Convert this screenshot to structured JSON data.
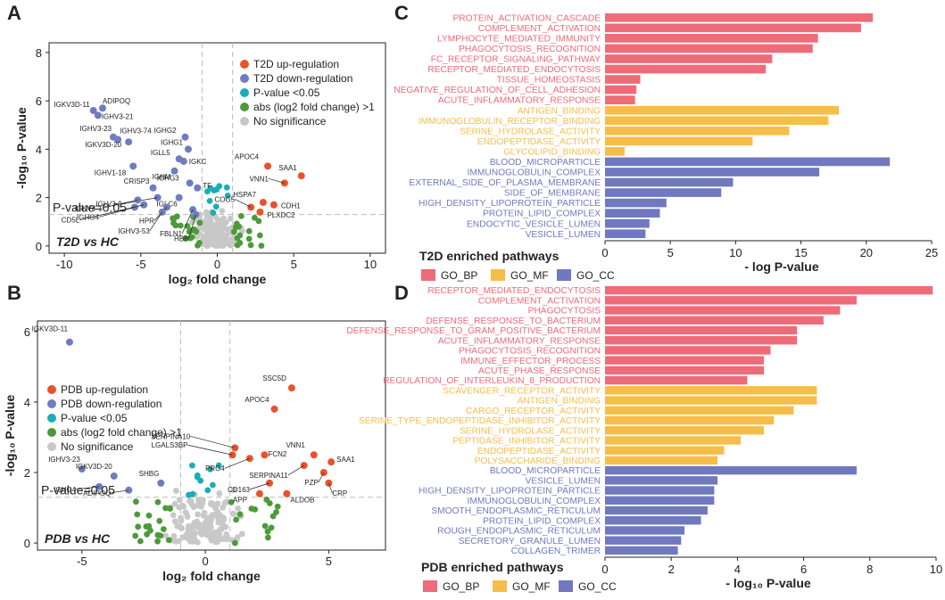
{
  "colors": {
    "bp": "#ee6b78",
    "mf": "#f7bd4a",
    "cc": "#7079bf",
    "up": "#e8532b",
    "down": "#6f7cbf",
    "sig": "#1aadb8",
    "fc": "#4c9a3a",
    "ns": "#c8c8c8",
    "axis": "#222222",
    "dash": "#bbbbbb"
  },
  "chart_data": [
    {
      "type": "scatter",
      "panel": "A",
      "panel_label": "A",
      "subtitle": "T2D vs HC",
      "xlabel": "log₂ fold change",
      "ylabel": "-log₁₀ P-value",
      "xlim": [
        -11,
        11
      ],
      "ylim": [
        -0.3,
        8.4
      ],
      "xticks": [
        -10,
        -5,
        0,
        5,
        10
      ],
      "yticks": [
        0,
        2,
        4,
        6,
        8
      ],
      "threshold_x": [
        -1,
        1
      ],
      "threshold_y": 1.3,
      "threshold_label": "P-value=0.05",
      "legend": {
        "position": "top-right",
        "entries": [
          {
            "label": "T2D up-regulation",
            "color": "up"
          },
          {
            "label": "T2D down-regulation",
            "color": "down"
          },
          {
            "label": "P-value <0.05",
            "color": "sig"
          },
          {
            "label": "abs (log2 fold change) >1",
            "color": "fc"
          },
          {
            "label": "No significance",
            "color": "ns"
          }
        ]
      },
      "labeled_points": [
        {
          "label": "ADIPOQ",
          "x": -7.5,
          "y": 5.7,
          "g": "down"
        },
        {
          "label": "IGKV3D-11",
          "x": -8.1,
          "y": 5.6,
          "g": "down"
        },
        {
          "label": "IGHV3-21",
          "x": -7.8,
          "y": 5.4,
          "g": "down"
        },
        {
          "label": "IGHV3-23",
          "x": -6.8,
          "y": 4.5,
          "g": "down"
        },
        {
          "label": "IGHV3-74",
          "x": -6.5,
          "y": 4.4,
          "g": "down"
        },
        {
          "label": "IGKV3D-20",
          "x": -5.8,
          "y": 4.3,
          "g": "down"
        },
        {
          "label": "IGHV1-18",
          "x": -5.5,
          "y": 3.3,
          "g": "down"
        },
        {
          "label": "IGHG2",
          "x": -2.1,
          "y": 4.5,
          "g": "down"
        },
        {
          "label": "IGHG1",
          "x": -1.9,
          "y": 4.0,
          "g": "down"
        },
        {
          "label": "IGLL5",
          "x": -2.5,
          "y": 3.6,
          "g": "down"
        },
        {
          "label": "IGKC",
          "x": -2.2,
          "y": 3.5,
          "g": "down"
        },
        {
          "label": "IGHM",
          "x": -2.8,
          "y": 3.1,
          "g": "down"
        },
        {
          "label": "IGHG3",
          "x": -1.8,
          "y": 2.6,
          "g": "down"
        },
        {
          "label": "TF",
          "x": -1.3,
          "y": 2.4,
          "g": "down"
        },
        {
          "label": "CRISP3",
          "x": -4.2,
          "y": 2.4,
          "g": "down"
        },
        {
          "label": "IGLV3-9",
          "x": -3.9,
          "y": 2.0,
          "g": "down"
        },
        {
          "label": "IGLC6",
          "x": -2.5,
          "y": 2.0,
          "g": "down"
        },
        {
          "label": "IGKV4-1",
          "x": -5.2,
          "y": 1.9,
          "g": "down"
        },
        {
          "label": "IGHG4",
          "x": -5.4,
          "y": 1.6,
          "g": "down"
        },
        {
          "label": "HPR",
          "x": -3.3,
          "y": 1.6,
          "g": "down"
        },
        {
          "label": "CD5L",
          "x": -4.8,
          "y": 1.7,
          "g": "down"
        },
        {
          "label": "IGHV3-53",
          "x": -3.6,
          "y": 1.4,
          "g": "down"
        },
        {
          "label": "FBLN1",
          "x": -1.6,
          "y": 1.5,
          "g": "down"
        },
        {
          "label": "HBB",
          "x": -1.4,
          "y": 1.3,
          "g": "down"
        },
        {
          "label": "APOC4",
          "x": 3.3,
          "y": 3.3,
          "g": "up"
        },
        {
          "label": "SAA1",
          "x": 5.5,
          "y": 2.9,
          "g": "up"
        },
        {
          "label": "VNN1",
          "x": 4.4,
          "y": 2.6,
          "g": "up"
        },
        {
          "label": "COG5",
          "x": 2.2,
          "y": 1.6,
          "g": "up"
        },
        {
          "label": "HSPA7",
          "x": 3.0,
          "y": 1.8,
          "g": "up"
        },
        {
          "label": "CDH1",
          "x": 3.7,
          "y": 1.7,
          "g": "up"
        },
        {
          "label": "PLXDC2",
          "x": 2.8,
          "y": 1.4,
          "g": "up"
        }
      ]
    },
    {
      "type": "scatter",
      "panel": "B",
      "panel_label": "B",
      "subtitle": "PDB vs HC",
      "xlabel": "log₂ fold change",
      "ylabel": "-log₁₀ P-value",
      "xlim": [
        -6.8,
        7.3
      ],
      "ylim": [
        -0.2,
        6.3
      ],
      "xticks": [
        -5,
        0,
        5
      ],
      "yticks": [
        0,
        2,
        4,
        6
      ],
      "threshold_x": [
        -1,
        1
      ],
      "threshold_y": 1.3,
      "threshold_label": "P-value=0.05",
      "legend": {
        "position": "top-left",
        "entries": [
          {
            "label": "PDB up-regulation",
            "color": "up"
          },
          {
            "label": "PDB down-regulation",
            "color": "down"
          },
          {
            "label": "P-value <0.05",
            "color": "sig"
          },
          {
            "label": "abs (log2 fold change) >1",
            "color": "fc"
          },
          {
            "label": "No significance",
            "color": "ns"
          }
        ]
      },
      "labeled_points": [
        {
          "label": "IGKV3D-11",
          "x": -5.5,
          "y": 5.7,
          "g": "down"
        },
        {
          "label": "IGHV3-23",
          "x": -5.0,
          "y": 2.1,
          "g": "down"
        },
        {
          "label": "IGKV3D-20",
          "x": -3.7,
          "y": 1.9,
          "g": "down"
        },
        {
          "label": "IGHG4",
          "x": -4.3,
          "y": 1.6,
          "g": "down"
        },
        {
          "label": "ADIPOQ",
          "x": -3.1,
          "y": 1.5,
          "g": "down"
        },
        {
          "label": "SHBG",
          "x": -1.8,
          "y": 1.7,
          "g": "down"
        },
        {
          "label": "SSC5D",
          "x": 3.5,
          "y": 4.4,
          "g": "up"
        },
        {
          "label": "APOC4",
          "x": 2.8,
          "y": 3.8,
          "g": "up"
        },
        {
          "label": "SERPINA10",
          "x": 1.2,
          "y": 2.7,
          "g": "up"
        },
        {
          "label": "LGALS3BP",
          "x": 1.1,
          "y": 2.5,
          "g": "up"
        },
        {
          "label": "PRG4",
          "x": 1.8,
          "y": 2.4,
          "g": "up"
        },
        {
          "label": "FCN2",
          "x": 2.4,
          "y": 2.5,
          "g": "up"
        },
        {
          "label": "VNN1",
          "x": 4.4,
          "y": 2.5,
          "g": "up"
        },
        {
          "label": "SERPINA11",
          "x": 4.0,
          "y": 2.2,
          "g": "up"
        },
        {
          "label": "SAA1",
          "x": 5.1,
          "y": 2.3,
          "g": "up"
        },
        {
          "label": "PZP",
          "x": 4.8,
          "y": 2.0,
          "g": "up"
        },
        {
          "label": "CD163",
          "x": 2.6,
          "y": 1.7,
          "g": "up"
        },
        {
          "label": "CRP",
          "x": 5.0,
          "y": 1.7,
          "g": "up"
        },
        {
          "label": "APP",
          "x": 2.2,
          "y": 1.4,
          "g": "up"
        },
        {
          "label": "ALDOB",
          "x": 3.3,
          "y": 1.4,
          "g": "up"
        }
      ]
    },
    {
      "type": "bar",
      "orientation": "horizontal",
      "panel": "C",
      "panel_label": "C",
      "title": "T2D enriched pathways",
      "xlabel": "- log  P-value",
      "xlim": [
        0,
        25
      ],
      "xticks": [
        0,
        5,
        10,
        15,
        20,
        25
      ],
      "legend": [
        {
          "label": "GO_BP",
          "group": "bp"
        },
        {
          "label": "GO_MF",
          "group": "mf"
        },
        {
          "label": "GO_CC",
          "group": "cc"
        }
      ],
      "categories": [
        "PROTEIN_ACTIVATION_CASCADE",
        "COMPLEMENT_ACTIVATION",
        "LYMPHOCYTE_MEDIATED_IMMUNITY",
        "PHAGOCYTOSIS_RECOGNITION",
        "FC_RECEPTOR_SIGNALING_PATHWAY",
        "RECEPTOR_MEDIATED_ENDOCYTOSIS",
        "TISSUE_HOMEOSTASIS",
        "NEGATIVE_REGULATION_OF_CELL_ADHESION",
        "ACUTE_INFLAMMATORY_RESPONSE",
        "ANTIGEN_BINDING",
        "IMMUNOGLOBULIN_RECEPTOR_BINDING",
        "SERINE_HYDROLASE_ACTIVITY",
        "ENDOPEPTIDASE_ACTIVITY",
        "GLYCOLIPID_BINDING",
        "BLOOD_MICROPARTICLE",
        "IMMUNOGLOBULIN_COMPLEX",
        "EXTERNAL_SIDE_OF_PLASMA_MEMBRANE",
        "SIDE_OF_MEMBRANE",
        "HIGH_DENSITY_LIPOPROTEIN_PARTICLE",
        "PROTEIN_LIPID_COMPLEX",
        "ENDOCYTIC_VESICLE_LUMEN",
        "VESICLE_LUMEN"
      ],
      "values": [
        20.5,
        19.6,
        16.3,
        15.9,
        12.8,
        12.3,
        2.7,
        2.4,
        2.3,
        17.9,
        17.1,
        14.1,
        11.3,
        1.5,
        21.8,
        16.4,
        9.8,
        8.9,
        4.7,
        4.2,
        3.4,
        3.1
      ],
      "groups": [
        "bp",
        "bp",
        "bp",
        "bp",
        "bp",
        "bp",
        "bp",
        "bp",
        "bp",
        "mf",
        "mf",
        "mf",
        "mf",
        "mf",
        "cc",
        "cc",
        "cc",
        "cc",
        "cc",
        "cc",
        "cc",
        "cc"
      ]
    },
    {
      "type": "bar",
      "orientation": "horizontal",
      "panel": "D",
      "panel_label": "D",
      "title": "PDB enriched pathways",
      "xlabel": "- log₁₀ P-value",
      "xlim": [
        0,
        10
      ],
      "xticks": [
        0,
        2,
        4,
        6,
        8,
        10
      ],
      "legend": [
        {
          "label": "GO_BP",
          "group": "bp"
        },
        {
          "label": "GO_MF",
          "group": "mf"
        },
        {
          "label": "GO_CC",
          "group": "cc"
        }
      ],
      "categories": [
        "RECEPTOR_MEDIATED_ENDOCYTOSIS",
        "COMPLEMENT_ACTIVATION",
        "PHAGOCYTOSIS",
        "DEFENSE_RESPONSE_TO_BACTERIUM",
        "DEFENSE_RESPONSE_TO_GRAM_POSITIVE_BACTERIUM",
        "ACUTE_INFLAMMATORY_RESPONSE",
        "PHAGOCYTOSIS_RECOGNITION",
        "IMMUNE_EFFECTOR_PROCESS",
        "ACUTE_PHASE_RESPONSE",
        "REGULATION_OF_INTERLEUKIN_8_PRODUCTION",
        "SCAVENGER_RECEPTOR_ACTIVITY",
        "ANTIGEN_BINDING",
        "CARGO_RECEPTOR_ACTIVITY",
        "SERINE_TYPE_ENDOPEPTIDASE_INHIBITOR_ACTIVITY",
        "SERINE_HYDROLASE_ACTIVITY",
        "PEPTIDASE_INHIBITOR_ACTIVITY",
        "ENDOPEPTIDASE_ACTIVITY",
        "POLYSACCHARIDE_BINDING",
        "BLOOD_MICROPARTICLE",
        "VESICLE_LUMEN",
        "HIGH_DENSITY_LIPOPROTEIN_PARTICLE",
        "IMMUNOGLOBULIN_COMPLEX",
        "SMOOTH_ENDOPLASMIC_RETICULUM",
        "PROTEIN_LIPID_COMPLEX",
        "ROUGH_ENDOPLASMIC_RETICULUM",
        "SECRETORY_GRANULE_LUMEN",
        "COLLAGEN_TRIMER"
      ],
      "values": [
        9.9,
        7.6,
        7.1,
        6.6,
        5.8,
        5.8,
        5.0,
        4.8,
        4.8,
        4.3,
        6.4,
        6.4,
        5.7,
        5.1,
        4.8,
        4.1,
        3.6,
        3.4,
        7.6,
        3.4,
        3.3,
        3.3,
        3.1,
        2.9,
        2.4,
        2.3,
        2.2
      ],
      "groups": [
        "bp",
        "bp",
        "bp",
        "bp",
        "bp",
        "bp",
        "bp",
        "bp",
        "bp",
        "bp",
        "mf",
        "mf",
        "mf",
        "mf",
        "mf",
        "mf",
        "mf",
        "mf",
        "cc",
        "cc",
        "cc",
        "cc",
        "cc",
        "cc",
        "cc",
        "cc",
        "cc"
      ]
    }
  ]
}
